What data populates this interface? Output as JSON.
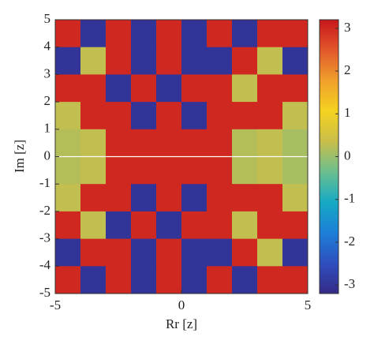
{
  "chart_data": {
    "type": "heatmap",
    "xlabel": "Rr [z]",
    "ylabel": "Im [z]",
    "xlim": [
      -5,
      5
    ],
    "ylim": [
      -5,
      5
    ],
    "xticks": [
      -5,
      0,
      5
    ],
    "yticks": [
      -5,
      -4,
      -3,
      -2,
      -1,
      0,
      1,
      2,
      3,
      4,
      5
    ],
    "clim": [
      -3.2,
      3.2
    ],
    "cticks": [
      -3,
      -2,
      -1,
      0,
      1,
      2,
      3
    ],
    "colormap": [
      "#352a87",
      "#2f4fbf",
      "#1c7fd8",
      "#16aac4",
      "#6bbf8f",
      "#c9be4a",
      "#f5d21f",
      "#f0a02c",
      "#e2572b",
      "#c8161b"
    ],
    "z": [
      [
        3,
        -3,
        3,
        -3,
        3,
        -3,
        3,
        -3,
        3,
        3
      ],
      [
        -3,
        0.3,
        3,
        -3,
        3,
        -3,
        -3,
        3,
        0.3,
        -3
      ],
      [
        3,
        3,
        -3,
        3,
        -3,
        3,
        3,
        0.3,
        3,
        3
      ],
      [
        0.3,
        3,
        3,
        -3,
        3,
        -3,
        3,
        3,
        3,
        0.3
      ],
      [
        0.2,
        0.3,
        3,
        3,
        3,
        3,
        3,
        0.2,
        0.3,
        0.1
      ],
      [
        0.2,
        0.3,
        3,
        3,
        3,
        3,
        3,
        0.2,
        0.3,
        0.1
      ],
      [
        0.3,
        3,
        3,
        -3,
        3,
        -3,
        3,
        3,
        3,
        0.3
      ],
      [
        3,
        0.3,
        -3,
        3,
        -3,
        3,
        3,
        0.3,
        3,
        3
      ],
      [
        -3,
        3,
        3,
        -3,
        3,
        -3,
        -3,
        3,
        0.3,
        -3
      ],
      [
        3,
        -3,
        3,
        -3,
        3,
        -3,
        3,
        -3,
        3,
        3
      ]
    ]
  }
}
